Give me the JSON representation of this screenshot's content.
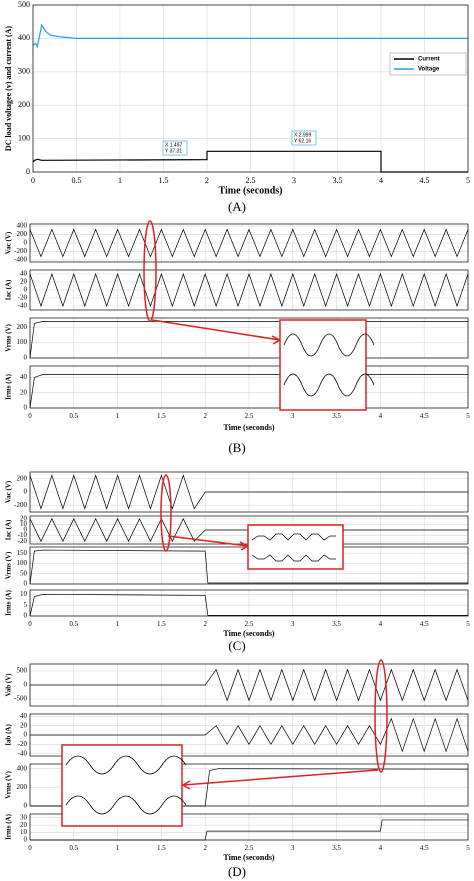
{
  "chart_data": [
    {
      "type": "line",
      "ylabel": "DC load voltagee (v) and current (A)",
      "xlabel": "Time (seconds)",
      "caption": "(A)",
      "xlim": [
        0,
        5
      ],
      "xticks": [
        0,
        0.5,
        1,
        1.5,
        2,
        2.5,
        3,
        3.5,
        4,
        4.5,
        5
      ],
      "ylim": [
        0,
        500
      ],
      "yticks": [
        0,
        100,
        200,
        300,
        400,
        500
      ],
      "grid": true,
      "legend": "right",
      "series": [
        {
          "name": "Current",
          "color": "#000000",
          "x": [
            0,
            0.02,
            0.05,
            0.1,
            2,
            2,
            4,
            4,
            5
          ],
          "values": [
            30,
            35,
            38,
            35,
            37,
            62,
            62,
            0,
            0
          ]
        },
        {
          "name": "Voltage",
          "color": "#1fa3e0",
          "x": [
            0,
            0.03,
            0.05,
            0.1,
            0.15,
            0.2,
            0.3,
            0.5,
            5
          ],
          "values": [
            380,
            385,
            375,
            440,
            420,
            410,
            405,
            400,
            400
          ]
        }
      ],
      "annotations": [
        [
          "X 1.497",
          "Y 37.31"
        ],
        [
          "X 2.999",
          "Y 62.16"
        ]
      ]
    },
    {
      "xlabel": "Time (seconds)",
      "caption": "(B)",
      "xlim": [
        0,
        5
      ],
      "xticks": [
        0,
        0.5,
        1,
        1.5,
        2,
        2.5,
        3,
        3.5,
        4,
        4.5,
        5
      ],
      "subplots": [
        {
          "type": "line",
          "ylabel": "Vac (V)",
          "ylim": [
            -450,
            450
          ],
          "yticks": [
            -400,
            -200,
            0,
            200,
            400
          ],
          "grid": true,
          "x": [
            0,
            0.125,
            0.25,
            0.375,
            0.5,
            0.625,
            0.75,
            0.875,
            1,
            1.125,
            1.25,
            1.375,
            1.5,
            1.625,
            1.75,
            1.875,
            2,
            2.125,
            2.25,
            2.375,
            2.5,
            2.625,
            2.75,
            2.875,
            3,
            3.125,
            3.25,
            3.375,
            3.5,
            3.625,
            3.75,
            3.875,
            4,
            4.125,
            4.25,
            4.375,
            4.5,
            4.625,
            4.75,
            4.875,
            5
          ],
          "series": [
            {
              "color": "#000000",
              "values": [
                320,
                -320,
                320,
                -320,
                320,
                -320,
                320,
                -320,
                320,
                -320,
                320,
                -320,
                320,
                -320,
                320,
                -320,
                320,
                -320,
                320,
                -320,
                320,
                -320,
                320,
                -320,
                320,
                -320,
                320,
                -320,
                320,
                -320,
                320,
                -320,
                320,
                -320,
                320,
                -320,
                320,
                -320,
                320,
                -320,
                320
              ]
            }
          ]
        },
        {
          "type": "line",
          "ylabel": "Iac (A)",
          "ylim": [
            -50,
            50
          ],
          "yticks": [
            -40,
            -20,
            0,
            20,
            40
          ],
          "grid": true,
          "x": [
            0,
            0.125,
            0.25,
            0.375,
            0.5,
            0.625,
            0.75,
            0.875,
            1,
            1.125,
            1.25,
            1.375,
            1.5,
            1.625,
            1.75,
            1.875,
            2,
            2.125,
            2.25,
            2.375,
            2.5,
            2.625,
            2.75,
            2.875,
            3,
            3.125,
            3.25,
            3.375,
            3.5,
            3.625,
            3.75,
            3.875,
            4,
            4.125,
            4.25,
            4.375,
            4.5,
            4.625,
            4.75,
            4.875,
            5
          ],
          "series": [
            {
              "color": "#000000",
              "values": [
                40,
                -40,
                40,
                -40,
                40,
                -40,
                40,
                -40,
                40,
                -40,
                40,
                -40,
                40,
                -40,
                40,
                -40,
                40,
                -40,
                40,
                -40,
                40,
                -40,
                40,
                -40,
                40,
                -40,
                40,
                -40,
                40,
                -40,
                40,
                -40,
                40,
                -40,
                40,
                -40,
                40,
                -40,
                40,
                -40,
                40
              ]
            }
          ]
        },
        {
          "type": "line",
          "ylabel": "Vrms (V)",
          "ylim": [
            0,
            260
          ],
          "yticks": [
            0,
            100,
            200
          ],
          "grid": true,
          "x": [
            0,
            0.05,
            0.15,
            5
          ],
          "series": [
            {
              "color": "#000000",
              "values": [
                0,
                225,
                238,
                238
              ]
            }
          ]
        },
        {
          "type": "line",
          "ylabel": "Irms (A)",
          "ylim": [
            0,
            55
          ],
          "yticks": [
            0,
            20,
            40
          ],
          "grid": true,
          "x": [
            0,
            0.05,
            0.15,
            5
          ],
          "series": [
            {
              "color": "#000000",
              "values": [
                0,
                40,
                44,
                44
              ]
            }
          ]
        }
      ]
    },
    {
      "xlabel": "Time (seconds)",
      "caption": "(C)",
      "xlim": [
        0,
        5
      ],
      "xticks": [
        0,
        0.5,
        1,
        1.5,
        2,
        2.5,
        3,
        3.5,
        4,
        4.5,
        5
      ],
      "subplots": [
        {
          "type": "line",
          "ylabel": "Vac (V)",
          "ylim": [
            -300,
            300
          ],
          "yticks": [
            -200,
            0,
            200
          ],
          "grid": true,
          "x": [
            0,
            0.125,
            0.25,
            0.375,
            0.5,
            0.625,
            0.75,
            0.875,
            1,
            1.125,
            1.25,
            1.375,
            1.5,
            1.625,
            1.75,
            1.875,
            2,
            2.125,
            2.25,
            2.375,
            2.5,
            2.625,
            2.75,
            2.875,
            3,
            3.125,
            3.25,
            3.375,
            3.5,
            3.625,
            3.75,
            3.875,
            4,
            4.125,
            4.25,
            4.375,
            4.5,
            4.625,
            4.75,
            4.875,
            5
          ],
          "series": [
            {
              "color": "#000000",
              "values": [
                250,
                -250,
                250,
                -250,
                250,
                -250,
                250,
                -250,
                250,
                -250,
                250,
                -250,
                250,
                -250,
                250,
                -250,
                0,
                0,
                0,
                0,
                0,
                0,
                0,
                0,
                0,
                0,
                0,
                0,
                0,
                0,
                0,
                0,
                0,
                0,
                0,
                0,
                0,
                0,
                0,
                0,
                0
              ]
            }
          ]
        },
        {
          "type": "line",
          "ylabel": "Iac (A)",
          "ylim": [
            -25,
            25
          ],
          "yticks": [
            -20,
            -10,
            0,
            10,
            20
          ],
          "grid": true,
          "x": [
            0,
            0.125,
            0.25,
            0.375,
            0.5,
            0.625,
            0.75,
            0.875,
            1,
            1.125,
            1.25,
            1.375,
            1.5,
            1.625,
            1.75,
            1.875,
            2,
            2.125,
            2.25,
            2.375,
            2.5,
            2.625,
            2.75,
            2.875,
            3,
            3.125,
            3.25,
            3.375,
            3.5,
            3.625,
            3.75,
            3.875,
            4,
            4.125,
            4.25,
            4.375,
            4.5,
            4.625,
            4.75,
            4.875,
            5
          ],
          "series": [
            {
              "color": "#000000",
              "values": [
                20,
                -20,
                20,
                -20,
                20,
                -20,
                20,
                -20,
                20,
                -20,
                20,
                -20,
                20,
                -20,
                20,
                -20,
                0,
                0,
                0,
                0,
                0,
                0,
                0,
                0,
                0,
                0,
                0,
                0,
                0,
                0,
                0,
                0,
                0,
                0,
                0,
                0,
                0,
                0,
                0,
                0,
                0
              ]
            }
          ]
        },
        {
          "type": "line",
          "ylabel": "Vrms (V)",
          "ylim": [
            0,
            180
          ],
          "yticks": [
            0,
            50,
            100,
            150
          ],
          "grid": true,
          "x": [
            0,
            0.05,
            0.15,
            2,
            2.03,
            5
          ],
          "series": [
            {
              "color": "#000000",
              "values": [
                0,
                160,
                165,
                160,
                5,
                5
              ]
            }
          ]
        },
        {
          "type": "line",
          "ylabel": "Irms (A)",
          "ylim": [
            0,
            12
          ],
          "yticks": [
            0,
            5,
            10
          ],
          "grid": true,
          "x": [
            0,
            0.05,
            0.15,
            2,
            2.03,
            5
          ],
          "series": [
            {
              "color": "#000000",
              "values": [
                0,
                9,
                10,
                9.5,
                0.3,
                0.3
              ]
            }
          ]
        }
      ]
    },
    {
      "xlabel": "Time (seconds)",
      "caption": "(D)",
      "xlim": [
        0,
        5
      ],
      "xticks": [
        0,
        0.5,
        1,
        1.5,
        2,
        2.5,
        3,
        3.5,
        4,
        4.5,
        5
      ],
      "subplots": [
        {
          "type": "line",
          "ylabel": "Vab (V)",
          "ylim": [
            -750,
            750
          ],
          "yticks": [
            -500,
            0,
            500
          ],
          "grid": true,
          "x": [
            0,
            0.125,
            0.25,
            0.375,
            0.5,
            0.625,
            0.75,
            0.875,
            1,
            1.125,
            1.25,
            1.375,
            1.5,
            1.625,
            1.75,
            1.875,
            2,
            2.125,
            2.25,
            2.375,
            2.5,
            2.625,
            2.75,
            2.875,
            3,
            3.125,
            3.25,
            3.375,
            3.5,
            3.625,
            3.75,
            3.875,
            4,
            4.125,
            4.25,
            4.375,
            4.5,
            4.625,
            4.75,
            4.875,
            5
          ],
          "series": [
            {
              "color": "#000000",
              "values": [
                0,
                0,
                0,
                0,
                0,
                0,
                0,
                0,
                0,
                0,
                0,
                0,
                0,
                0,
                0,
                0,
                0,
                550,
                -550,
                550,
                -550,
                550,
                -550,
                550,
                -550,
                550,
                -550,
                550,
                -550,
                550,
                -550,
                550,
                -550,
                550,
                -550,
                550,
                -550,
                550,
                -550,
                550,
                -550
              ]
            }
          ]
        },
        {
          "type": "line",
          "ylabel": "Iab (A)",
          "ylim": [
            -45,
            45
          ],
          "yticks": [
            -40,
            -20,
            0,
            20,
            40
          ],
          "grid": true,
          "x": [
            0,
            0.125,
            0.25,
            0.375,
            0.5,
            0.625,
            0.75,
            0.875,
            1,
            1.125,
            1.25,
            1.375,
            1.5,
            1.625,
            1.75,
            1.875,
            2,
            2.125,
            2.25,
            2.375,
            2.5,
            2.625,
            2.75,
            2.875,
            3,
            3.125,
            3.25,
            3.375,
            3.5,
            3.625,
            3.75,
            3.875,
            4,
            4.125,
            4.25,
            4.375,
            4.5,
            4.625,
            4.75,
            4.875,
            5
          ],
          "series": [
            {
              "color": "#000000",
              "values": [
                0,
                0,
                0,
                0,
                0,
                0,
                0,
                0,
                0,
                0,
                0,
                0,
                0,
                0,
                0,
                0,
                0,
                20,
                -20,
                20,
                -20,
                20,
                -20,
                20,
                -20,
                20,
                -20,
                20,
                -20,
                20,
                -20,
                20,
                -20,
                35,
                -35,
                35,
                -35,
                35,
                -35,
                35,
                -35
              ]
            }
          ]
        },
        {
          "type": "line",
          "ylabel": "Vrms (V)",
          "ylim": [
            0,
            450
          ],
          "yticks": [
            0,
            200,
            400
          ],
          "grid": true,
          "x": [
            0,
            2,
            2.05,
            2.15,
            5
          ],
          "series": [
            {
              "color": "#000000",
              "values": [
                0,
                0,
                380,
                400,
                395
              ]
            }
          ]
        },
        {
          "type": "line",
          "ylabel": "Irms (A)",
          "ylim": [
            0,
            35
          ],
          "yticks": [
            0,
            10,
            20,
            30
          ],
          "grid": true,
          "x": [
            0,
            2,
            2.02,
            4,
            4.02,
            5
          ],
          "series": [
            {
              "color": "#000000",
              "values": [
                0,
                0,
                12,
                12,
                27,
                27
              ]
            }
          ]
        }
      ]
    }
  ]
}
